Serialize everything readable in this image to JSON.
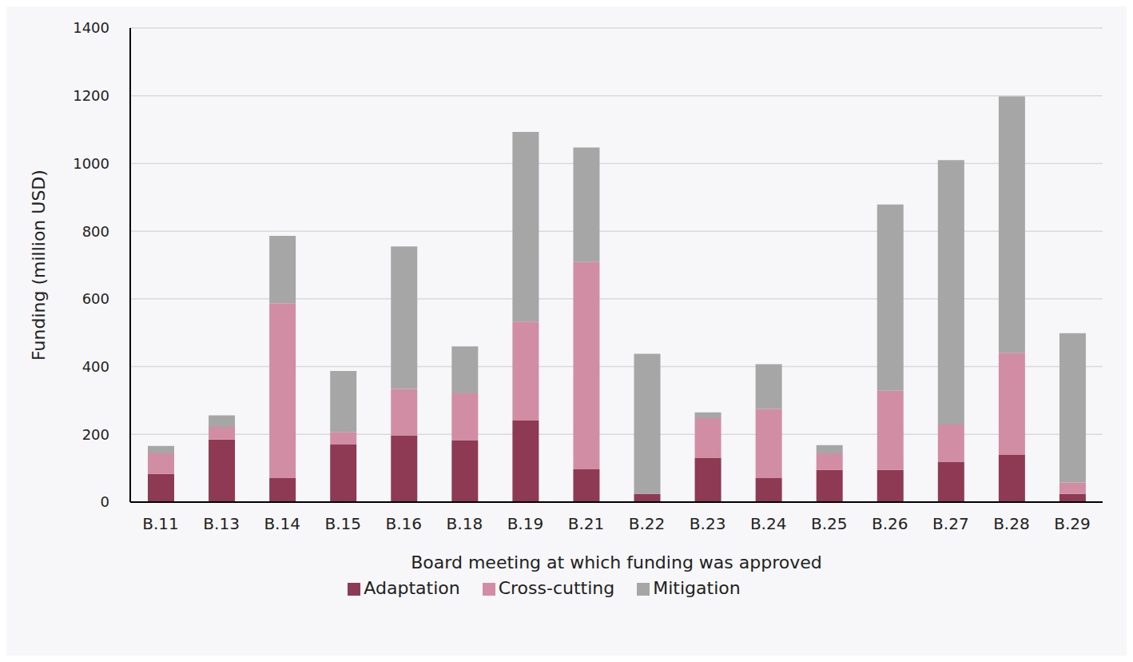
{
  "chart_data": {
    "type": "bar",
    "x_label": "Board meeting at which funding was approved",
    "y_label": "Funding (million USD)",
    "categories": [
      "B.11",
      "B.13",
      "B.14",
      "B.15",
      "B.16",
      "B.18",
      "B.19",
      "B.21",
      "B.22",
      "B.23",
      "B.24",
      "B.25",
      "B.26",
      "B.27",
      "B.28",
      "B.29"
    ],
    "series": [
      {
        "name": "Adaptation",
        "color": "#8e3a55",
        "values": [
          83,
          185,
          71,
          170,
          197,
          183,
          241,
          97,
          24,
          131,
          71,
          95,
          95,
          119,
          139,
          24
        ]
      },
      {
        "name": "Cross-cutting",
        "color": "#d08da4",
        "values": [
          61,
          37,
          516,
          37,
          137,
          138,
          292,
          612,
          0,
          117,
          204,
          49,
          234,
          110,
          302,
          34
        ]
      },
      {
        "name": "Mitigation",
        "color": "#a6a6a6",
        "values": [
          22,
          34,
          199,
          180,
          421,
          139,
          560,
          338,
          414,
          17,
          132,
          24,
          550,
          781,
          757,
          441
        ]
      }
    ],
    "ylim": [
      0,
      1400
    ],
    "yticks": [
      0,
      200,
      400,
      600,
      800,
      1000,
      1200,
      1400
    ],
    "grid": true,
    "stacked": true,
    "legend": "bottom"
  }
}
